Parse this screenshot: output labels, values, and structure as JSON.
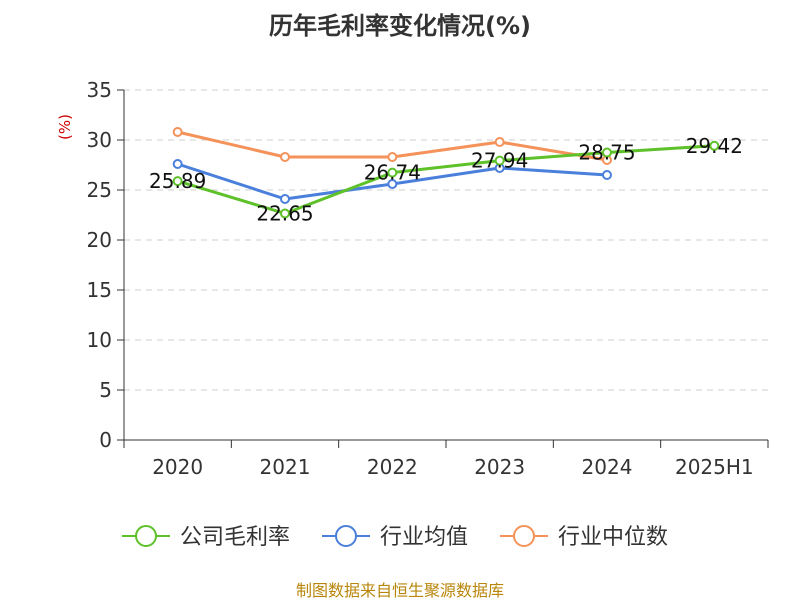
{
  "chart_data": {
    "type": "line",
    "title": "历年毛利率变化情况(%)",
    "ylabel": "(%)",
    "xlabel": "",
    "categories": [
      "2020",
      "2021",
      "2022",
      "2023",
      "2024",
      "2025H1"
    ],
    "ylim": [
      0,
      35
    ],
    "yticks": [
      "0",
      "5",
      "10",
      "15",
      "20",
      "25",
      "30",
      "35"
    ],
    "grid": true,
    "legend_position": "bottom",
    "series": [
      {
        "name": "公司毛利率",
        "color": "#5ec12a",
        "values": [
          25.89,
          22.65,
          26.74,
          27.94,
          28.75,
          29.42
        ],
        "labels": [
          "25.89",
          "22.65",
          "26.74",
          "27.94",
          "28.75",
          "29.42"
        ]
      },
      {
        "name": "行业均值",
        "color": "#4a7fdc",
        "values": [
          27.6,
          24.1,
          25.6,
          27.2,
          26.5,
          null
        ],
        "labels": []
      },
      {
        "name": "行业中位数",
        "color": "#f4925a",
        "values": [
          30.8,
          28.3,
          28.3,
          29.8,
          28.0,
          null
        ],
        "labels": []
      }
    ],
    "source": "制图数据来自恒生聚源数据库"
  }
}
